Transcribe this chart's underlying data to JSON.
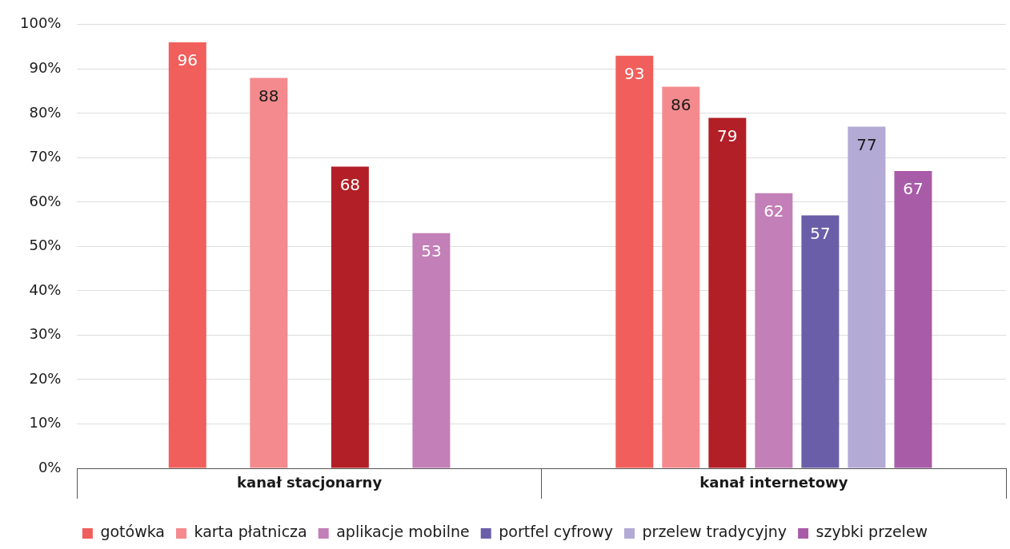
{
  "chart_data": {
    "type": "bar",
    "categories": [
      "kanał stacjonarny",
      "kanał internetowy"
    ],
    "series": [
      {
        "name": "gotówka",
        "color": "#f05f5c",
        "values": [
          96,
          93
        ]
      },
      {
        "name": "karta płatnicza",
        "color": "#f48a8d",
        "values": [
          88,
          86
        ]
      },
      {
        "color": "#b31f26",
        "values": [
          68,
          79
        ]
      },
      {
        "name": "aplikacje mobilne",
        "color": "#c37fb7",
        "values": [
          53,
          62
        ]
      },
      {
        "name": "portfel cyfrowy",
        "color": "#6b5ea8",
        "values": [
          null,
          57
        ]
      },
      {
        "name": "przelew tradycyjny",
        "color": "#b3aad5",
        "values": [
          null,
          77
        ]
      },
      {
        "name": "szybki przelew",
        "color": "#a85ca8",
        "values": [
          null,
          67
        ]
      }
    ],
    "ylim": [
      0,
      100
    ],
    "yticks": [
      {
        "value": 0,
        "label": "0%"
      },
      {
        "value": 10,
        "label": "10%"
      },
      {
        "value": 20,
        "label": "20%"
      },
      {
        "value": 30,
        "label": "30%"
      },
      {
        "value": 40,
        "label": "40%"
      },
      {
        "value": 50,
        "label": "50%"
      },
      {
        "value": 60,
        "label": "60%"
      },
      {
        "value": 70,
        "label": "70%"
      },
      {
        "value": 80,
        "label": "80%"
      },
      {
        "value": 90,
        "label": "90%"
      },
      {
        "value": 100,
        "label": "100%"
      }
    ],
    "grid": "y",
    "legend": "bottom",
    "data_labels": true
  }
}
